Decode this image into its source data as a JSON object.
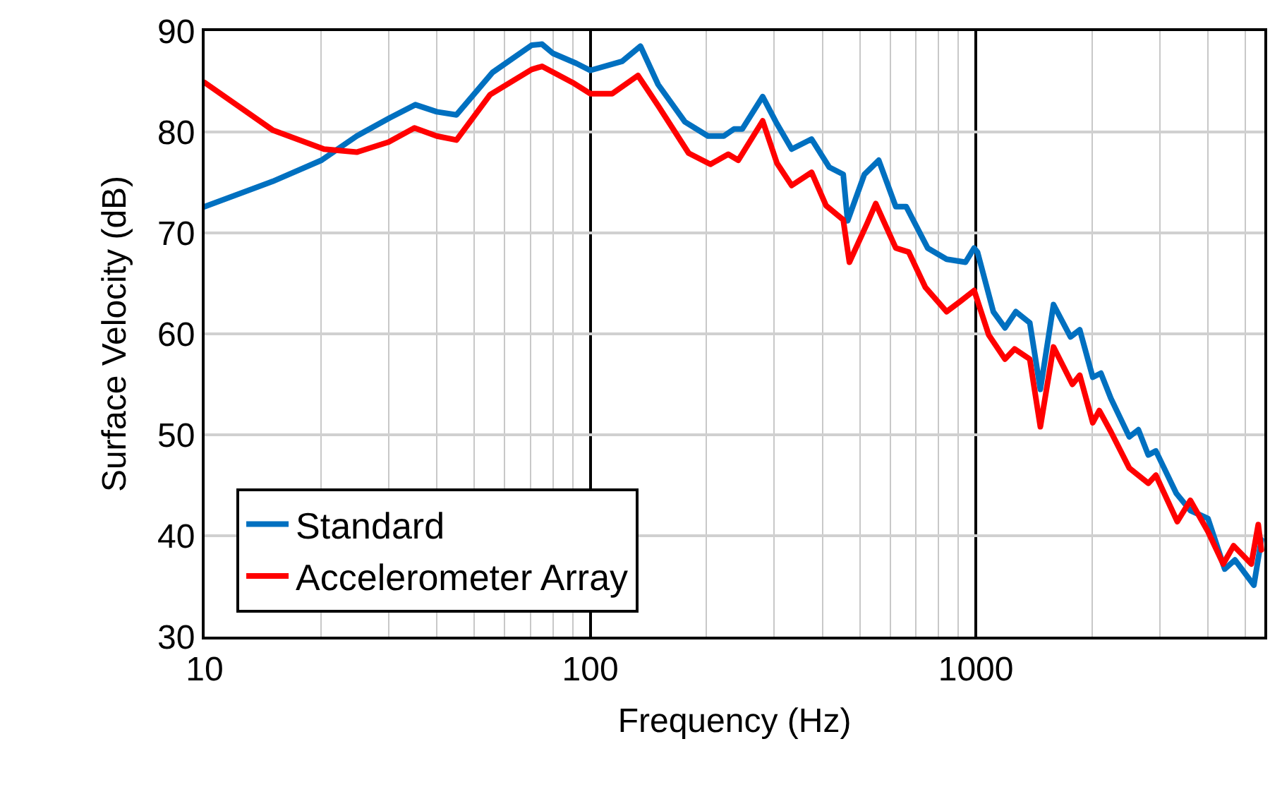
{
  "chart_data": {
    "type": "line",
    "xlabel": "Frequency (Hz)",
    "ylabel": "Surface Velocity (dB)",
    "log": "x",
    "grid": true,
    "legend": "bottom left",
    "marker": "none",
    "line_style": "solid",
    "xlim": [
      10,
      5600
    ],
    "xticks": [
      10,
      100,
      1000
    ],
    "ylim": [
      30,
      90
    ],
    "yticks": [
      30,
      40,
      50,
      60,
      70,
      80,
      90
    ],
    "series": [
      {
        "name": "Standard",
        "color": "#0070c0",
        "x": [
          10,
          15,
          20.1,
          24.8,
          30.2,
          35.2,
          40,
          45,
          55.8,
          70.5,
          75,
          80,
          92,
          100,
          121,
          135,
          150,
          176,
          202,
          222,
          236,
          248,
          280,
          303,
          333,
          375,
          417,
          453,
          465,
          514,
          560,
          620,
          660,
          750,
          840,
          940,
          990,
          1010,
          1110,
          1190,
          1270,
          1380,
          1470,
          1590,
          1760,
          1860,
          2010,
          2110,
          2240,
          2500,
          2640,
          2800,
          2930,
          3310,
          3600,
          4000,
          4420,
          4700,
          5260,
          5500
        ],
        "values": [
          72.6,
          75.1,
          77.2,
          79.6,
          81.4,
          82.7,
          82.0,
          81.7,
          85.9,
          88.6,
          88.7,
          87.8,
          86.8,
          86.1,
          87.0,
          88.5,
          84.7,
          81.0,
          79.6,
          79.6,
          80.3,
          80.3,
          83.5,
          81.0,
          78.3,
          79.3,
          76.5,
          75.8,
          71.2,
          75.8,
          77.2,
          72.6,
          72.6,
          68.5,
          67.4,
          67.1,
          68.5,
          68.1,
          62.2,
          60.6,
          62.2,
          61.1,
          54.5,
          62.9,
          59.7,
          60.4,
          55.7,
          56.1,
          53.6,
          49.8,
          50.5,
          48.0,
          48.4,
          44.2,
          42.5,
          41.7,
          36.7,
          37.6,
          35.1,
          39.6
        ]
      },
      {
        "name": "Accelerometer Array",
        "color": "#ff0000",
        "x": [
          10,
          15,
          20.4,
          24.8,
          30,
          35,
          40,
          45,
          55,
          70.5,
          75,
          90,
          100,
          114,
          133,
          150,
          180,
          205,
          228,
          242,
          280,
          305,
          333,
          375,
          409,
          453,
          470,
          522,
          550,
          620,
          670,
          740,
          840,
          910,
          990,
          1080,
          1190,
          1260,
          1380,
          1470,
          1590,
          1780,
          1860,
          2010,
          2090,
          2240,
          2500,
          2800,
          2930,
          3330,
          3600,
          4000,
          4380,
          4660,
          5180,
          5400,
          5500
        ],
        "values": [
          84.9,
          80.2,
          78.3,
          78.0,
          79.0,
          80.4,
          79.6,
          79.2,
          83.7,
          86.2,
          86.5,
          84.9,
          83.8,
          83.8,
          85.6,
          82.6,
          77.9,
          76.8,
          77.8,
          77.2,
          81.1,
          76.9,
          74.7,
          76.0,
          72.7,
          71.3,
          67.1,
          70.9,
          72.9,
          68.5,
          68.1,
          64.6,
          62.2,
          63.2,
          64.3,
          59.9,
          57.5,
          58.5,
          57.5,
          50.8,
          58.7,
          55.0,
          55.9,
          51.2,
          52.4,
          50.3,
          46.7,
          45.2,
          46.0,
          41.4,
          43.5,
          40.4,
          37.2,
          39.0,
          37.2,
          41.1,
          38.6
        ]
      }
    ]
  }
}
